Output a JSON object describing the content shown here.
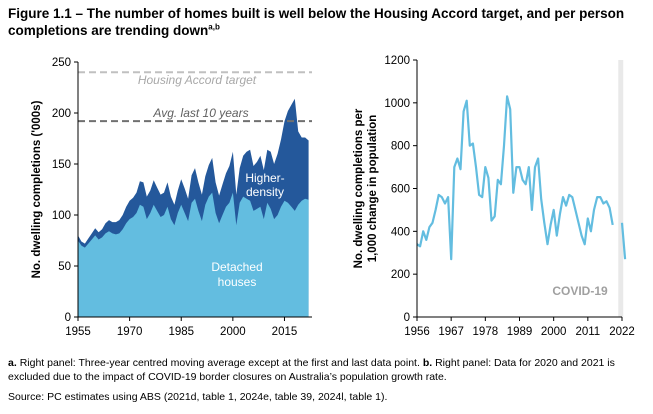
{
  "figure": {
    "title_main": "Figure 1.1 – The number of homes built is well below the Housing Accord target, and per person completions are trending down",
    "title_sup": "a,b"
  },
  "notes": {
    "a_label": "a.",
    "a_text": "Right panel: Three-year centred moving average except at the first and last data point.",
    "b_label": "b.",
    "b_text": "Right panel: Data for 2020 and 2021 is excluded due to the impact of COVID-19 border closures on Australia’s population growth rate.",
    "source": "Source: PC estimates using ABS (2021d, table 1, 2024e, table 39, 2024l, table 1)."
  },
  "colors": {
    "detached": "#63bde0",
    "higher_density": "#24589b",
    "accord_line": "#c0c0c0",
    "avg_line": "#707070",
    "right_line": "#63bde0",
    "covid_band": "#e9e9e9"
  },
  "chart_data": [
    {
      "type": "area",
      "ylabel": "No. dwelling completions ('000s)",
      "xlim": [
        1955,
        2023
      ],
      "ylim": [
        0,
        250
      ],
      "yticks": [
        0,
        50,
        100,
        150,
        200,
        250
      ],
      "xticks": [
        1955,
        1970,
        1985,
        2000,
        2015
      ],
      "grid": false,
      "stacked": true,
      "x": [
        1955,
        1956,
        1957,
        1958,
        1959,
        1960,
        1961,
        1962,
        1963,
        1964,
        1965,
        1966,
        1967,
        1968,
        1969,
        1970,
        1971,
        1972,
        1973,
        1974,
        1975,
        1976,
        1977,
        1978,
        1979,
        1980,
        1981,
        1982,
        1983,
        1984,
        1985,
        1986,
        1987,
        1988,
        1989,
        1990,
        1991,
        1992,
        1993,
        1994,
        1995,
        1996,
        1997,
        1998,
        1999,
        2000,
        2001,
        2002,
        2003,
        2004,
        2005,
        2006,
        2007,
        2008,
        2009,
        2010,
        2011,
        2012,
        2013,
        2014,
        2015,
        2016,
        2017,
        2018,
        2019,
        2020,
        2021,
        2022
      ],
      "series": [
        {
          "name": "Detached houses",
          "values": [
            75,
            70,
            68,
            72,
            76,
            80,
            76,
            78,
            82,
            84,
            82,
            81,
            82,
            86,
            92,
            96,
            98,
            102,
            110,
            108,
            96,
            102,
            110,
            104,
            98,
            100,
            108,
            96,
            90,
            102,
            110,
            102,
            94,
            112,
            116,
            104,
            94,
            110,
            118,
            122,
            102,
            92,
            100,
            108,
            112,
            122,
            90,
            112,
            118,
            116,
            114,
            104,
            106,
            108,
            96,
            112,
            106,
            96,
            100,
            108,
            114,
            112,
            108,
            104,
            110,
            114,
            116,
            115
          ]
        },
        {
          "name": "Higher-density",
          "values": [
            5,
            4,
            4,
            5,
            6,
            7,
            7,
            8,
            10,
            11,
            11,
            12,
            13,
            14,
            16,
            18,
            19,
            20,
            23,
            24,
            22,
            22,
            24,
            23,
            22,
            22,
            24,
            22,
            20,
            22,
            25,
            24,
            22,
            27,
            30,
            28,
            26,
            28,
            31,
            34,
            30,
            27,
            30,
            33,
            36,
            40,
            30,
            34,
            40,
            46,
            50,
            44,
            46,
            50,
            48,
            52,
            56,
            54,
            60,
            66,
            78,
            90,
            100,
            110,
            72,
            62,
            60,
            58
          ]
        }
      ],
      "reference_lines": [
        {
          "label": "Housing Accord target",
          "y": 240
        },
        {
          "label": "Avg. last 10 years",
          "y": 192
        }
      ],
      "annotations": [
        "Higher-density",
        "Detached houses"
      ]
    },
    {
      "type": "line",
      "ylabel": "No. dwelling completions per 1,000 change in population",
      "xlim": [
        1956,
        2022
      ],
      "ylim": [
        0,
        1200
      ],
      "yticks": [
        0,
        200,
        400,
        600,
        800,
        1000,
        1200
      ],
      "xticks": [
        1956,
        1967,
        1978,
        1989,
        2000,
        2011,
        2022
      ],
      "grid": false,
      "segments": [
        {
          "x": [
            1956,
            1957,
            1958,
            1959,
            1960,
            1961,
            1962,
            1963,
            1964,
            1965,
            1966,
            1967,
            1968,
            1969,
            1970,
            1971,
            1972,
            1973,
            1974,
            1975,
            1976,
            1977,
            1978,
            1979,
            1980,
            1981,
            1982,
            1983,
            1984,
            1985,
            1986,
            1987,
            1988,
            1989,
            1990,
            1991,
            1992,
            1993,
            1994,
            1995,
            1996,
            1997,
            1998,
            1999,
            2000,
            2001,
            2002,
            2003,
            2004,
            2005,
            2006,
            2007,
            2008,
            2009,
            2010,
            2011,
            2012,
            2013,
            2014,
            2015,
            2016,
            2017,
            2018,
            2019
          ],
          "values": [
            340,
            330,
            400,
            360,
            420,
            440,
            500,
            570,
            560,
            530,
            560,
            270,
            700,
            740,
            690,
            960,
            1010,
            800,
            810,
            700,
            570,
            560,
            700,
            650,
            450,
            470,
            640,
            620,
            800,
            1030,
            970,
            580,
            700,
            700,
            640,
            620,
            700,
            500,
            700,
            740,
            550,
            440,
            340,
            430,
            500,
            380,
            480,
            560,
            520,
            570,
            560,
            500,
            440,
            380,
            340,
            460,
            400,
            500,
            560,
            560,
            530,
            540,
            510,
            430
          ]
        },
        {
          "x": [
            2022,
            2023
          ],
          "values": [
            440,
            270
          ]
        }
      ],
      "shaded_region": {
        "from": 2020,
        "to": 2022,
        "label": "COVID-19"
      }
    }
  ]
}
